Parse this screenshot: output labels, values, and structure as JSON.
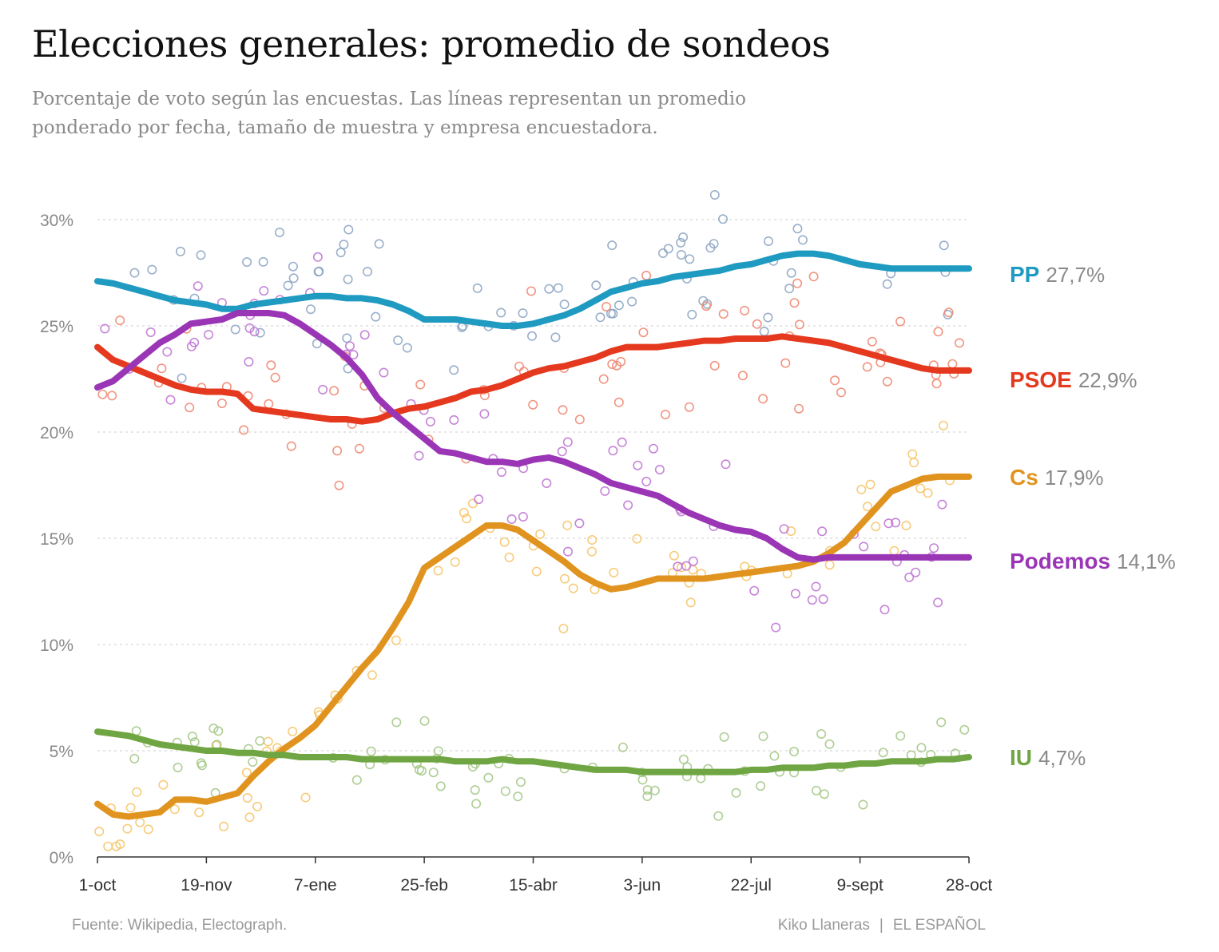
{
  "title": "Elecciones generales: promedio de sondeos",
  "subtitle": "Porcentaje de voto según las encuestas. Las líneas representan un promedio ponderado por fecha, tamaño de muestra y empresa encuestadora.",
  "footer": {
    "source": "Fuente: Wikipedia, Electograph.",
    "author": "Kiko Llaneras",
    "separator": "|",
    "outlet": "EL ESPAÑOL"
  },
  "chart_data": {
    "type": "line",
    "title": "Elecciones generales: promedio de sondeos",
    "xlabel": "",
    "ylabel": "",
    "x_ticks": [
      "1-oct",
      "19-nov",
      "7-ene",
      "25-feb",
      "15-abr",
      "3-jun",
      "22-jul",
      "9-sept",
      "28-oct"
    ],
    "x_tick_days": [
      0,
      49,
      98,
      147,
      196,
      245,
      294,
      343,
      392
    ],
    "x_range_days": [
      0,
      392
    ],
    "y_ticks": [
      "0%",
      "5%",
      "10%",
      "15%",
      "20%",
      "25%",
      "30%"
    ],
    "y_tick_values": [
      0,
      5,
      10,
      15,
      20,
      25,
      30
    ],
    "ylim": [
      0,
      33
    ],
    "grid": "horizontal-dotted",
    "legend": "end-labels-right",
    "series": [
      {
        "name": "PP",
        "end_label": "27,7%",
        "color": "#1f9ac0",
        "dot_color": "#8fa7c4",
        "x": [
          0,
          7,
          14,
          21,
          28,
          35,
          42,
          49,
          56,
          63,
          70,
          77,
          84,
          91,
          98,
          105,
          112,
          119,
          126,
          133,
          140,
          147,
          154,
          161,
          168,
          175,
          182,
          189,
          196,
          203,
          210,
          217,
          224,
          231,
          238,
          245,
          252,
          259,
          266,
          273,
          280,
          287,
          294,
          301,
          308,
          315,
          322,
          329,
          336,
          343,
          350,
          357,
          364,
          371,
          378,
          385,
          392
        ],
        "y": [
          27.1,
          27.0,
          26.8,
          26.6,
          26.4,
          26.2,
          26.1,
          26.0,
          25.8,
          25.8,
          26.0,
          26.1,
          26.2,
          26.3,
          26.4,
          26.4,
          26.3,
          26.3,
          26.2,
          26.0,
          25.7,
          25.3,
          25.3,
          25.3,
          25.2,
          25.1,
          25.0,
          25.0,
          25.1,
          25.3,
          25.5,
          25.8,
          26.2,
          26.6,
          26.8,
          27.0,
          27.1,
          27.3,
          27.4,
          27.5,
          27.6,
          27.8,
          27.9,
          28.1,
          28.3,
          28.4,
          28.4,
          28.3,
          28.1,
          27.9,
          27.8,
          27.7,
          27.7,
          27.7,
          27.7,
          27.7,
          27.7
        ]
      },
      {
        "name": "PSOE",
        "end_label": "22,9%",
        "color": "#e5391f",
        "dot_color": "#ef8a74",
        "x": [
          0,
          7,
          14,
          21,
          28,
          35,
          42,
          49,
          56,
          63,
          70,
          77,
          84,
          91,
          98,
          105,
          112,
          119,
          126,
          133,
          140,
          147,
          154,
          161,
          168,
          175,
          182,
          189,
          196,
          203,
          210,
          217,
          224,
          231,
          238,
          245,
          252,
          259,
          266,
          273,
          280,
          287,
          294,
          301,
          308,
          315,
          322,
          329,
          336,
          343,
          350,
          357,
          364,
          371,
          378,
          385,
          392
        ],
        "y": [
          24.0,
          23.4,
          23.1,
          22.8,
          22.5,
          22.2,
          22.0,
          21.9,
          21.9,
          21.8,
          21.1,
          21.0,
          20.9,
          20.8,
          20.7,
          20.6,
          20.6,
          20.5,
          20.6,
          20.9,
          21.1,
          21.2,
          21.4,
          21.6,
          21.9,
          22.0,
          22.2,
          22.5,
          22.8,
          23.0,
          23.1,
          23.3,
          23.5,
          23.8,
          24.0,
          24.0,
          24.0,
          24.1,
          24.2,
          24.3,
          24.3,
          24.4,
          24.4,
          24.4,
          24.5,
          24.4,
          24.3,
          24.2,
          24.0,
          23.8,
          23.6,
          23.4,
          23.2,
          23.0,
          22.9,
          22.9,
          22.9
        ]
      },
      {
        "name": "Cs",
        "end_label": "17,9%",
        "color": "#e0941f",
        "dot_color": "#f6c66e",
        "x": [
          0,
          7,
          14,
          21,
          28,
          35,
          42,
          49,
          56,
          63,
          70,
          77,
          84,
          91,
          98,
          105,
          112,
          119,
          126,
          133,
          140,
          147,
          154,
          161,
          168,
          175,
          182,
          189,
          196,
          203,
          210,
          217,
          224,
          231,
          238,
          245,
          252,
          259,
          266,
          273,
          280,
          287,
          294,
          301,
          308,
          315,
          322,
          329,
          336,
          343,
          350,
          357,
          364,
          371,
          378,
          385,
          392
        ],
        "y": [
          2.5,
          2.0,
          1.9,
          2.0,
          2.1,
          2.7,
          2.7,
          2.6,
          2.8,
          3.0,
          3.8,
          4.5,
          5.1,
          5.6,
          6.2,
          7.1,
          8.0,
          8.9,
          9.7,
          10.8,
          12.0,
          13.6,
          14.1,
          14.6,
          15.1,
          15.6,
          15.6,
          15.4,
          14.9,
          14.4,
          13.9,
          13.3,
          12.9,
          12.6,
          12.7,
          12.9,
          13.1,
          13.1,
          13.1,
          13.1,
          13.2,
          13.3,
          13.4,
          13.5,
          13.6,
          13.7,
          13.9,
          14.3,
          14.8,
          15.6,
          16.4,
          17.2,
          17.5,
          17.8,
          17.9,
          17.9,
          17.9
        ]
      },
      {
        "name": "Podemos",
        "end_label": "14,1%",
        "color": "#9a35b5",
        "dot_color": "#c078d4",
        "x": [
          0,
          7,
          14,
          21,
          28,
          35,
          42,
          49,
          56,
          63,
          70,
          77,
          84,
          91,
          98,
          105,
          112,
          119,
          126,
          133,
          140,
          147,
          154,
          161,
          168,
          175,
          182,
          189,
          196,
          203,
          210,
          217,
          224,
          231,
          238,
          245,
          252,
          259,
          266,
          273,
          280,
          287,
          294,
          301,
          308,
          315,
          322,
          329,
          336,
          343,
          350,
          357,
          364,
          371,
          378,
          385,
          392
        ],
        "y": [
          22.1,
          22.4,
          23.0,
          23.6,
          24.2,
          24.6,
          25.1,
          25.2,
          25.3,
          25.6,
          25.6,
          25.6,
          25.5,
          25.1,
          24.6,
          24.1,
          23.5,
          22.7,
          21.6,
          20.9,
          20.3,
          19.7,
          19.1,
          19.0,
          18.8,
          18.6,
          18.6,
          18.5,
          18.7,
          18.8,
          18.6,
          18.3,
          18.0,
          17.6,
          17.4,
          17.2,
          17.0,
          16.6,
          16.2,
          15.9,
          15.6,
          15.4,
          15.3,
          15.0,
          14.5,
          14.1,
          14.0,
          14.1,
          14.1,
          14.1,
          14.1,
          14.1,
          14.1,
          14.1,
          14.1,
          14.1,
          14.1
        ]
      },
      {
        "name": "IU",
        "end_label": "4,7%",
        "color": "#6fa542",
        "dot_color": "#a6c98a",
        "x": [
          0,
          7,
          14,
          21,
          28,
          35,
          42,
          49,
          56,
          63,
          70,
          77,
          84,
          91,
          98,
          105,
          112,
          119,
          126,
          133,
          140,
          147,
          154,
          161,
          168,
          175,
          182,
          189,
          196,
          203,
          210,
          217,
          224,
          231,
          238,
          245,
          252,
          259,
          266,
          273,
          280,
          287,
          294,
          301,
          308,
          315,
          322,
          329,
          336,
          343,
          350,
          357,
          364,
          371,
          378,
          385,
          392
        ],
        "y": [
          5.9,
          5.8,
          5.7,
          5.5,
          5.3,
          5.2,
          5.1,
          5.0,
          5.0,
          4.9,
          4.9,
          4.8,
          4.8,
          4.7,
          4.7,
          4.7,
          4.7,
          4.6,
          4.6,
          4.6,
          4.6,
          4.6,
          4.6,
          4.5,
          4.5,
          4.5,
          4.6,
          4.5,
          4.5,
          4.4,
          4.3,
          4.2,
          4.1,
          4.1,
          4.1,
          4.0,
          4.0,
          4.0,
          4.0,
          4.0,
          4.0,
          4.0,
          4.1,
          4.1,
          4.2,
          4.2,
          4.2,
          4.3,
          4.3,
          4.4,
          4.4,
          4.5,
          4.5,
          4.5,
          4.6,
          4.6,
          4.7
        ]
      }
    ]
  }
}
